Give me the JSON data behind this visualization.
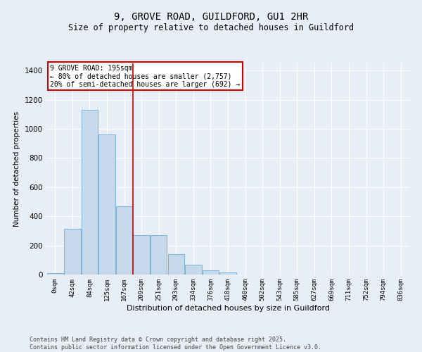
{
  "title": "9, GROVE ROAD, GUILDFORD, GU1 2HR",
  "subtitle": "Size of property relative to detached houses in Guildford",
  "xlabel": "Distribution of detached houses by size in Guildford",
  "ylabel": "Number of detached properties",
  "categories": [
    "0sqm",
    "42sqm",
    "84sqm",
    "125sqm",
    "167sqm",
    "209sqm",
    "251sqm",
    "293sqm",
    "334sqm",
    "376sqm",
    "418sqm",
    "460sqm",
    "502sqm",
    "543sqm",
    "585sqm",
    "627sqm",
    "669sqm",
    "711sqm",
    "752sqm",
    "794sqm",
    "836sqm"
  ],
  "bar_heights": [
    10,
    315,
    1130,
    960,
    470,
    270,
    270,
    140,
    70,
    30,
    15,
    0,
    0,
    0,
    0,
    0,
    0,
    0,
    0,
    0,
    0
  ],
  "bar_color": "#c5d9ea",
  "bar_edge_color": "#6aaed6",
  "vline_x": 4.5,
  "annotation_text": "9 GROVE ROAD: 195sqm\n← 80% of detached houses are smaller (2,757)\n20% of semi-detached houses are larger (692) →",
  "annotation_box_color": "#ffffff",
  "annotation_box_edge_color": "#cc0000",
  "ylim": [
    0,
    1450
  ],
  "yticks": [
    0,
    200,
    400,
    600,
    800,
    1000,
    1200,
    1400
  ],
  "background_color": "#e8eef5",
  "grid_color": "#ffffff",
  "footer_line1": "Contains HM Land Registry data © Crown copyright and database right 2025.",
  "footer_line2": "Contains public sector information licensed under the Open Government Licence v3.0."
}
